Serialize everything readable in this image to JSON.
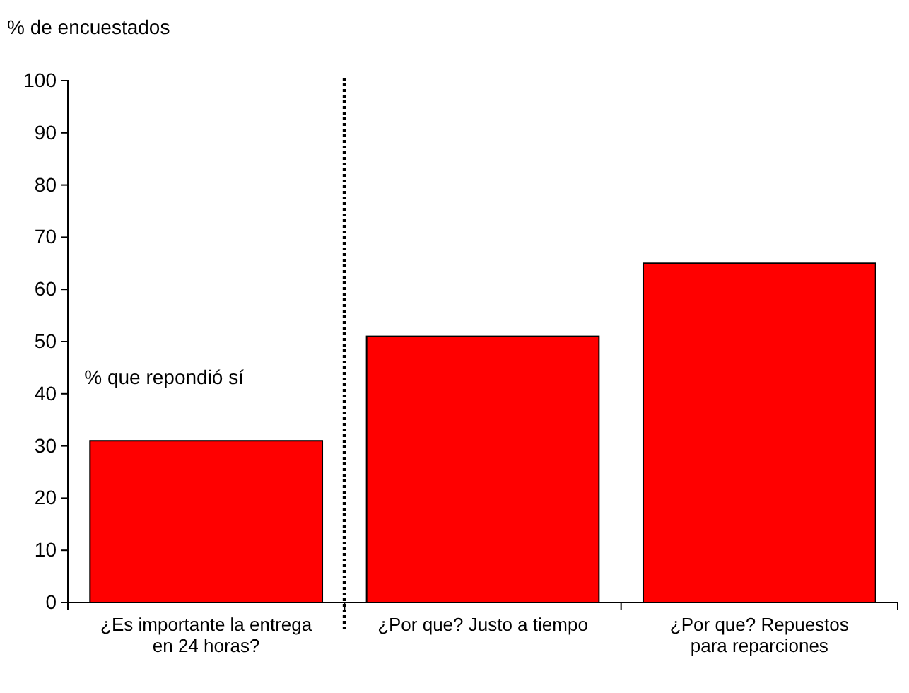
{
  "chart_data": {
    "type": "bar",
    "ylabel": "% de encuestados",
    "categories": [
      "¿Es importante la entrega en 24 horas?",
      "¿Por que? Justo a tiempo",
      "¿Por que? Repuestos para reparciones"
    ],
    "values": [
      31,
      51,
      65
    ],
    "color": "#ff0000",
    "ylim": [
      0,
      100
    ],
    "yticks": [
      0,
      10,
      20,
      30,
      40,
      50,
      60,
      70,
      80,
      90,
      100
    ],
    "grid": false,
    "annotations": [
      "% que repondió sí"
    ]
  }
}
